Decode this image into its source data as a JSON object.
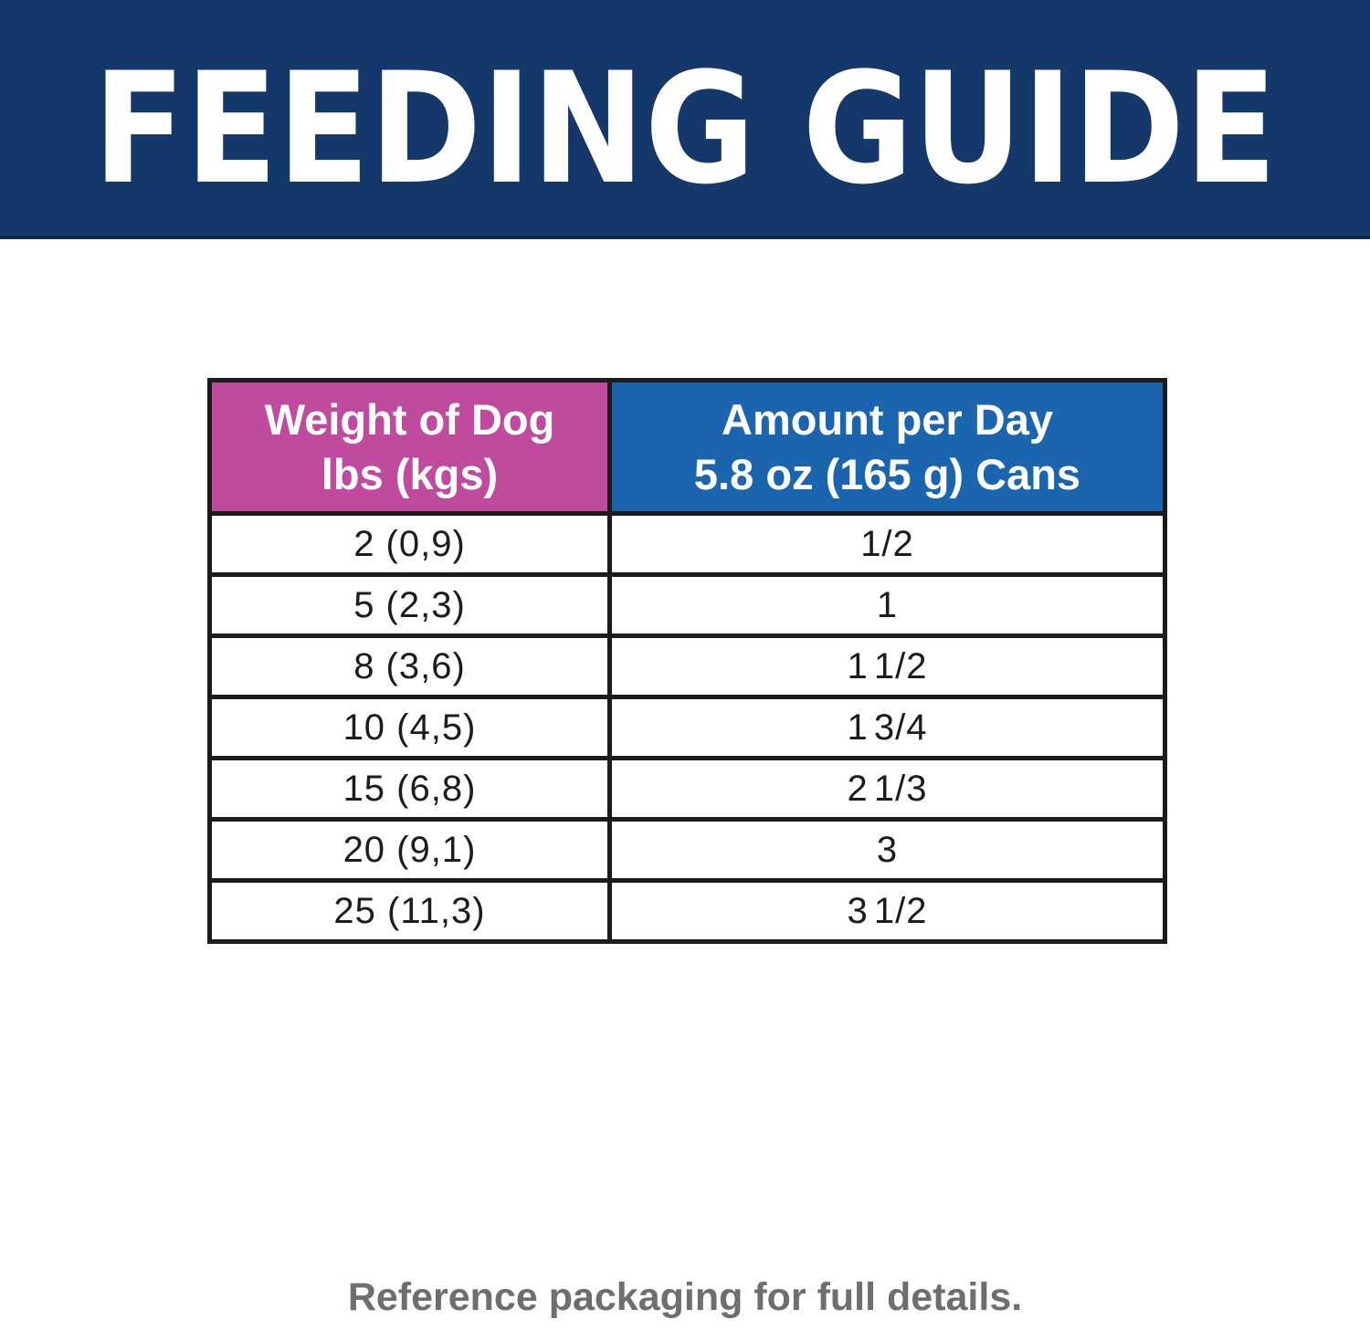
{
  "banner": {
    "title": "FEEDING GUIDE",
    "bg_color": "#14386a",
    "text_color": "#ffffff"
  },
  "table": {
    "columns": [
      {
        "header_line1": "Weight of Dog",
        "header_line2": "lbs (kgs)",
        "bg_color": "#bf4a9e"
      },
      {
        "header_line1": "Amount per Day",
        "header_line2": "5.8 oz (165 g) Cans",
        "bg_color": "#1b65af"
      }
    ],
    "rows": [
      {
        "weight": "2 (0,9)",
        "amount": "1/2"
      },
      {
        "weight": "5 (2,3)",
        "amount": "1"
      },
      {
        "weight": "8 (3,6)",
        "amount": "1 1/2"
      },
      {
        "weight": "10 (4,5)",
        "amount": "1 3/4"
      },
      {
        "weight": "15 (6,8)",
        "amount": "2 1/3"
      },
      {
        "weight": "20 (9,1)",
        "amount": "3"
      },
      {
        "weight": "25 (11,3)",
        "amount": "3 1/2"
      }
    ],
    "border_color": "#1c1c1c"
  },
  "footer": {
    "note": "Reference packaging for full details.",
    "text_color": "#6e6e6e"
  },
  "chart_data": {
    "type": "table",
    "title": "FEEDING GUIDE",
    "columns": [
      "Weight of Dog lbs (kgs)",
      "Amount per Day 5.8 oz (165 g) Cans"
    ],
    "rows": [
      [
        "2 (0,9)",
        "1/2"
      ],
      [
        "5 (2,3)",
        "1"
      ],
      [
        "8 (3,6)",
        "1 1/2"
      ],
      [
        "10 (4,5)",
        "1 3/4"
      ],
      [
        "15 (6,8)",
        "2 1/3"
      ],
      [
        "20 (9,1)",
        "3"
      ],
      [
        "25 (11,3)",
        "3 1/2"
      ]
    ],
    "note": "Reference packaging for full details."
  }
}
